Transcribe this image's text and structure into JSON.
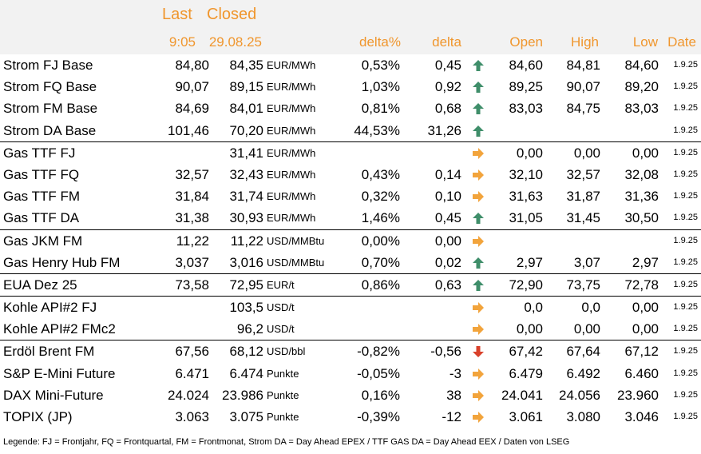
{
  "header": {
    "last_label": "Last",
    "closed_label": "Closed",
    "last_time": "9:05",
    "closed_date": "29.08.25",
    "deltapct_label": "delta%",
    "delta_label": "delta",
    "open_label": "Open",
    "high_label": "High",
    "low_label": "Low",
    "date_label": "Date"
  },
  "colors": {
    "header_text": "#f0962d",
    "header_bg": "#f2f2f2",
    "up": "#3f8e6a",
    "flat": "#f2a43c",
    "down": "#d9412b"
  },
  "rows": [
    {
      "name": "Strom FJ Base",
      "last": "84,80",
      "closed": "84,35",
      "unit": "EUR/MWh",
      "pct": "0,53%",
      "delta": "0,45",
      "trend": "up",
      "open": "84,60",
      "high": "84,81",
      "low": "84,60",
      "date": "1.9.25"
    },
    {
      "name": "Strom FQ Base",
      "last": "90,07",
      "closed": "89,15",
      "unit": "EUR/MWh",
      "pct": "1,03%",
      "delta": "0,92",
      "trend": "up",
      "open": "89,25",
      "high": "90,07",
      "low": "89,20",
      "date": "1.9.25"
    },
    {
      "name": "Strom FM Base",
      "last": "84,69",
      "closed": "84,01",
      "unit": "EUR/MWh",
      "pct": "0,81%",
      "delta": "0,68",
      "trend": "up",
      "open": "83,03",
      "high": "84,75",
      "low": "83,03",
      "date": "1.9.25"
    },
    {
      "name": "Strom DA Base",
      "last": "101,46",
      "closed": "70,20",
      "unit": "EUR/MWh",
      "pct": "44,53%",
      "delta": "31,26",
      "trend": "up",
      "open": "",
      "high": "",
      "low": "",
      "date": "1.9.25"
    },
    {
      "name": "Gas TTF FJ",
      "last": "",
      "closed": "31,41",
      "unit": "EUR/MWh",
      "pct": "",
      "delta": "",
      "trend": "flat",
      "open": "0,00",
      "high": "0,00",
      "low": "0,00",
      "date": "1.9.25"
    },
    {
      "name": "Gas TTF FQ",
      "last": "32,57",
      "closed": "32,43",
      "unit": "EUR/MWh",
      "pct": "0,43%",
      "delta": "0,14",
      "trend": "flat",
      "open": "32,10",
      "high": "32,57",
      "low": "32,08",
      "date": "1.9.25"
    },
    {
      "name": "Gas TTF FM",
      "last": "31,84",
      "closed": "31,74",
      "unit": "EUR/MWh",
      "pct": "0,32%",
      "delta": "0,10",
      "trend": "flat",
      "open": "31,63",
      "high": "31,87",
      "low": "31,36",
      "date": "1.9.25"
    },
    {
      "name": "Gas TTF DA",
      "last": "31,38",
      "closed": "30,93",
      "unit": "EUR/MWh",
      "pct": "1,46%",
      "delta": "0,45",
      "trend": "up",
      "open": "31,05",
      "high": "31,45",
      "low": "30,50",
      "date": "1.9.25"
    },
    {
      "name": "Gas JKM FM",
      "last": "11,22",
      "closed": "11,22",
      "unit": "USD/MMBtu",
      "pct": "0,00%",
      "delta": "0,00",
      "trend": "flat",
      "open": "",
      "high": "",
      "low": "",
      "date": "1.9.25"
    },
    {
      "name": "Gas Henry Hub FM",
      "last": "3,037",
      "closed": "3,016",
      "unit": "USD/MMBtu",
      "pct": "0,70%",
      "delta": "0,02",
      "trend": "up",
      "open": "2,97",
      "high": "3,07",
      "low": "2,97",
      "date": "1.9.25"
    },
    {
      "name": "EUA Dez 25",
      "last": "73,58",
      "closed": "72,95",
      "unit": "EUR/t",
      "pct": "0,86%",
      "delta": "0,63",
      "trend": "up",
      "open": "72,90",
      "high": "73,75",
      "low": "72,78",
      "date": "1.9.25"
    },
    {
      "name": "Kohle API#2 FJ",
      "last": "",
      "closed": "103,5",
      "unit": "USD/t",
      "pct": "",
      "delta": "",
      "trend": "flat",
      "open": "0,0",
      "high": "0,0",
      "low": "0,00",
      "date": "1.9.25"
    },
    {
      "name": "Kohle API#2 FMc2",
      "last": "",
      "closed": "96,2",
      "unit": "USD/t",
      "pct": "",
      "delta": "",
      "trend": "flat",
      "open": "0,00",
      "high": "0,00",
      "low": "0,00",
      "date": "1.9.25"
    },
    {
      "name": "Erdöl Brent FM",
      "last": "67,56",
      "closed": "68,12",
      "unit": "USD/bbl",
      "pct": "-0,82%",
      "delta": "-0,56",
      "trend": "down",
      "open": "67,42",
      "high": "67,64",
      "low": "67,12",
      "date": "1.9.25"
    },
    {
      "name": "S&P E-Mini Future",
      "last": "6.471",
      "closed": "6.474",
      "unit": "Punkte",
      "pct": "-0,05%",
      "delta": "-3",
      "trend": "flat",
      "open": "6.479",
      "high": "6.492",
      "low": "6.460",
      "date": "1.9.25"
    },
    {
      "name": "DAX Mini-Future",
      "last": "24.024",
      "closed": "23.986",
      "unit": "Punkte",
      "pct": "0,16%",
      "delta": "38",
      "trend": "flat",
      "open": "24.041",
      "high": "24.056",
      "low": "23.960",
      "date": "1.9.25"
    },
    {
      "name": "TOPIX (JP)",
      "last": "3.063",
      "closed": "3.075",
      "unit": "Punkte",
      "pct": "-0,39%",
      "delta": "-12",
      "trend": "flat",
      "open": "3.061",
      "high": "3.080",
      "low": "3.046",
      "date": "1.9.25"
    }
  ],
  "legend": "Legende: FJ = Frontjahr, FQ = Frontquartal, FM = Frontmonat, Strom DA = Day Ahead EPEX / TTF GAS DA = Day Ahead EEX / Daten von LSEG"
}
